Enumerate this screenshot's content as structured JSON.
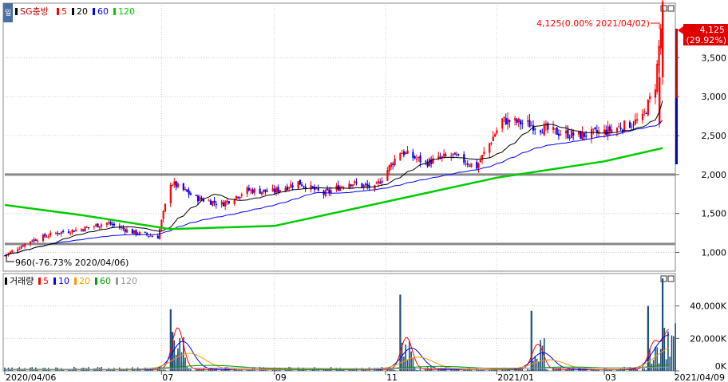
{
  "price_panel": {
    "legend": {
      "stock_name": "SG충방",
      "ma_labels": [
        "5",
        "20",
        "60",
        "120"
      ],
      "ma_colors": [
        "#ff0000",
        "#000000",
        "#0000ff",
        "#00cc00"
      ]
    },
    "tab_label": "일",
    "high_annotation": "4,125(0.00% 2021/04/02)",
    "low_annotation": "960(-76.73% 2020/04/06)",
    "current_price": "4,125",
    "current_change": "(29.92%)",
    "y_ticks": [
      "3,500",
      "3,000",
      "2,500",
      "2,000",
      "1,500",
      "1,000"
    ]
  },
  "volume_panel": {
    "legend": {
      "title": "거래량",
      "ma_labels": [
        "5",
        "10",
        "20",
        "60",
        "120"
      ],
      "ma_colors": [
        "#ff0000",
        "#0000ff",
        "#ff9900",
        "#009900",
        "#999999"
      ]
    },
    "y_ticks": [
      "40,000K",
      "20,000K",
      "0K"
    ]
  },
  "x_ticks": [
    "2020/04/06",
    "07",
    "09",
    "11",
    "2021/01",
    "03",
    "2021/04/09"
  ],
  "colors": {
    "up": "#ff0000",
    "down": "#0000ff",
    "ma5": "#ff0000",
    "ma20": "#000000",
    "ma60": "#0000ff",
    "ma120": "#00cc00",
    "support_line": "#888888",
    "volume_bar": "#1f4e79"
  },
  "chart_data": {
    "type": "candlestick",
    "title": "SG충방",
    "x_range": [
      "2020/04/06",
      "2021/04/09"
    ],
    "ylim": [
      760,
      4200
    ],
    "horizontal_lines": [
      2000,
      1110
    ],
    "price_path_dates": [
      "2020/04/06",
      "2020/04/20",
      "2020/05/04",
      "2020/05/18",
      "2020/06/01",
      "2020/06/15",
      "2020/06/29",
      "2020/07/06",
      "2020/07/20",
      "2020/08/03",
      "2020/08/17",
      "2020/08/31",
      "2020/09/14",
      "2020/09/28",
      "2020/10/12",
      "2020/10/26",
      "2020/11/09",
      "2020/11/23",
      "2020/12/07",
      "2020/12/21",
      "2021/01/04",
      "2021/01/18",
      "2021/02/01",
      "2021/02/15",
      "2021/03/01",
      "2021/03/15",
      "2021/03/22",
      "2021/03/29",
      "2021/04/02"
    ],
    "price_path_close": [
      960,
      1150,
      1250,
      1300,
      1380,
      1260,
      1200,
      1900,
      1700,
      1620,
      1800,
      1780,
      1900,
      1750,
      1900,
      1820,
      2300,
      2150,
      2250,
      2100,
      2700,
      2650,
      2550,
      2500,
      2550,
      2650,
      2720,
      3150,
      4125
    ],
    "ma120_dates": [
      "2020/04/06",
      "2020/05/18",
      "2020/07/06",
      "2020/09/01",
      "2020/11/01",
      "2021/01/01",
      "2021/03/01",
      "2021/04/02"
    ],
    "ma120_values": [
      1610,
      1480,
      1300,
      1340,
      1650,
      1960,
      2170,
      2340
    ],
    "high": {
      "value": 4125,
      "date": "2021/04/02",
      "change_pct": 0.0
    },
    "low": {
      "value": 960,
      "date": "2020/04/06",
      "change_pct": -76.73
    },
    "last": {
      "value": 4125,
      "change_pct": 29.92
    },
    "volume_unit": "K",
    "volume_ylim": [
      0,
      60000
    ],
    "volume_spikes": [
      {
        "date": "2020/07/06",
        "value": 38000
      },
      {
        "date": "2020/07/07",
        "value": 24000
      },
      {
        "date": "2020/11/09",
        "value": 47000
      },
      {
        "date": "2021/01/20",
        "value": 37000
      },
      {
        "date": "2021/03/25",
        "value": 40000
      },
      {
        "date": "2021/04/02",
        "value": 57000
      }
    ]
  }
}
